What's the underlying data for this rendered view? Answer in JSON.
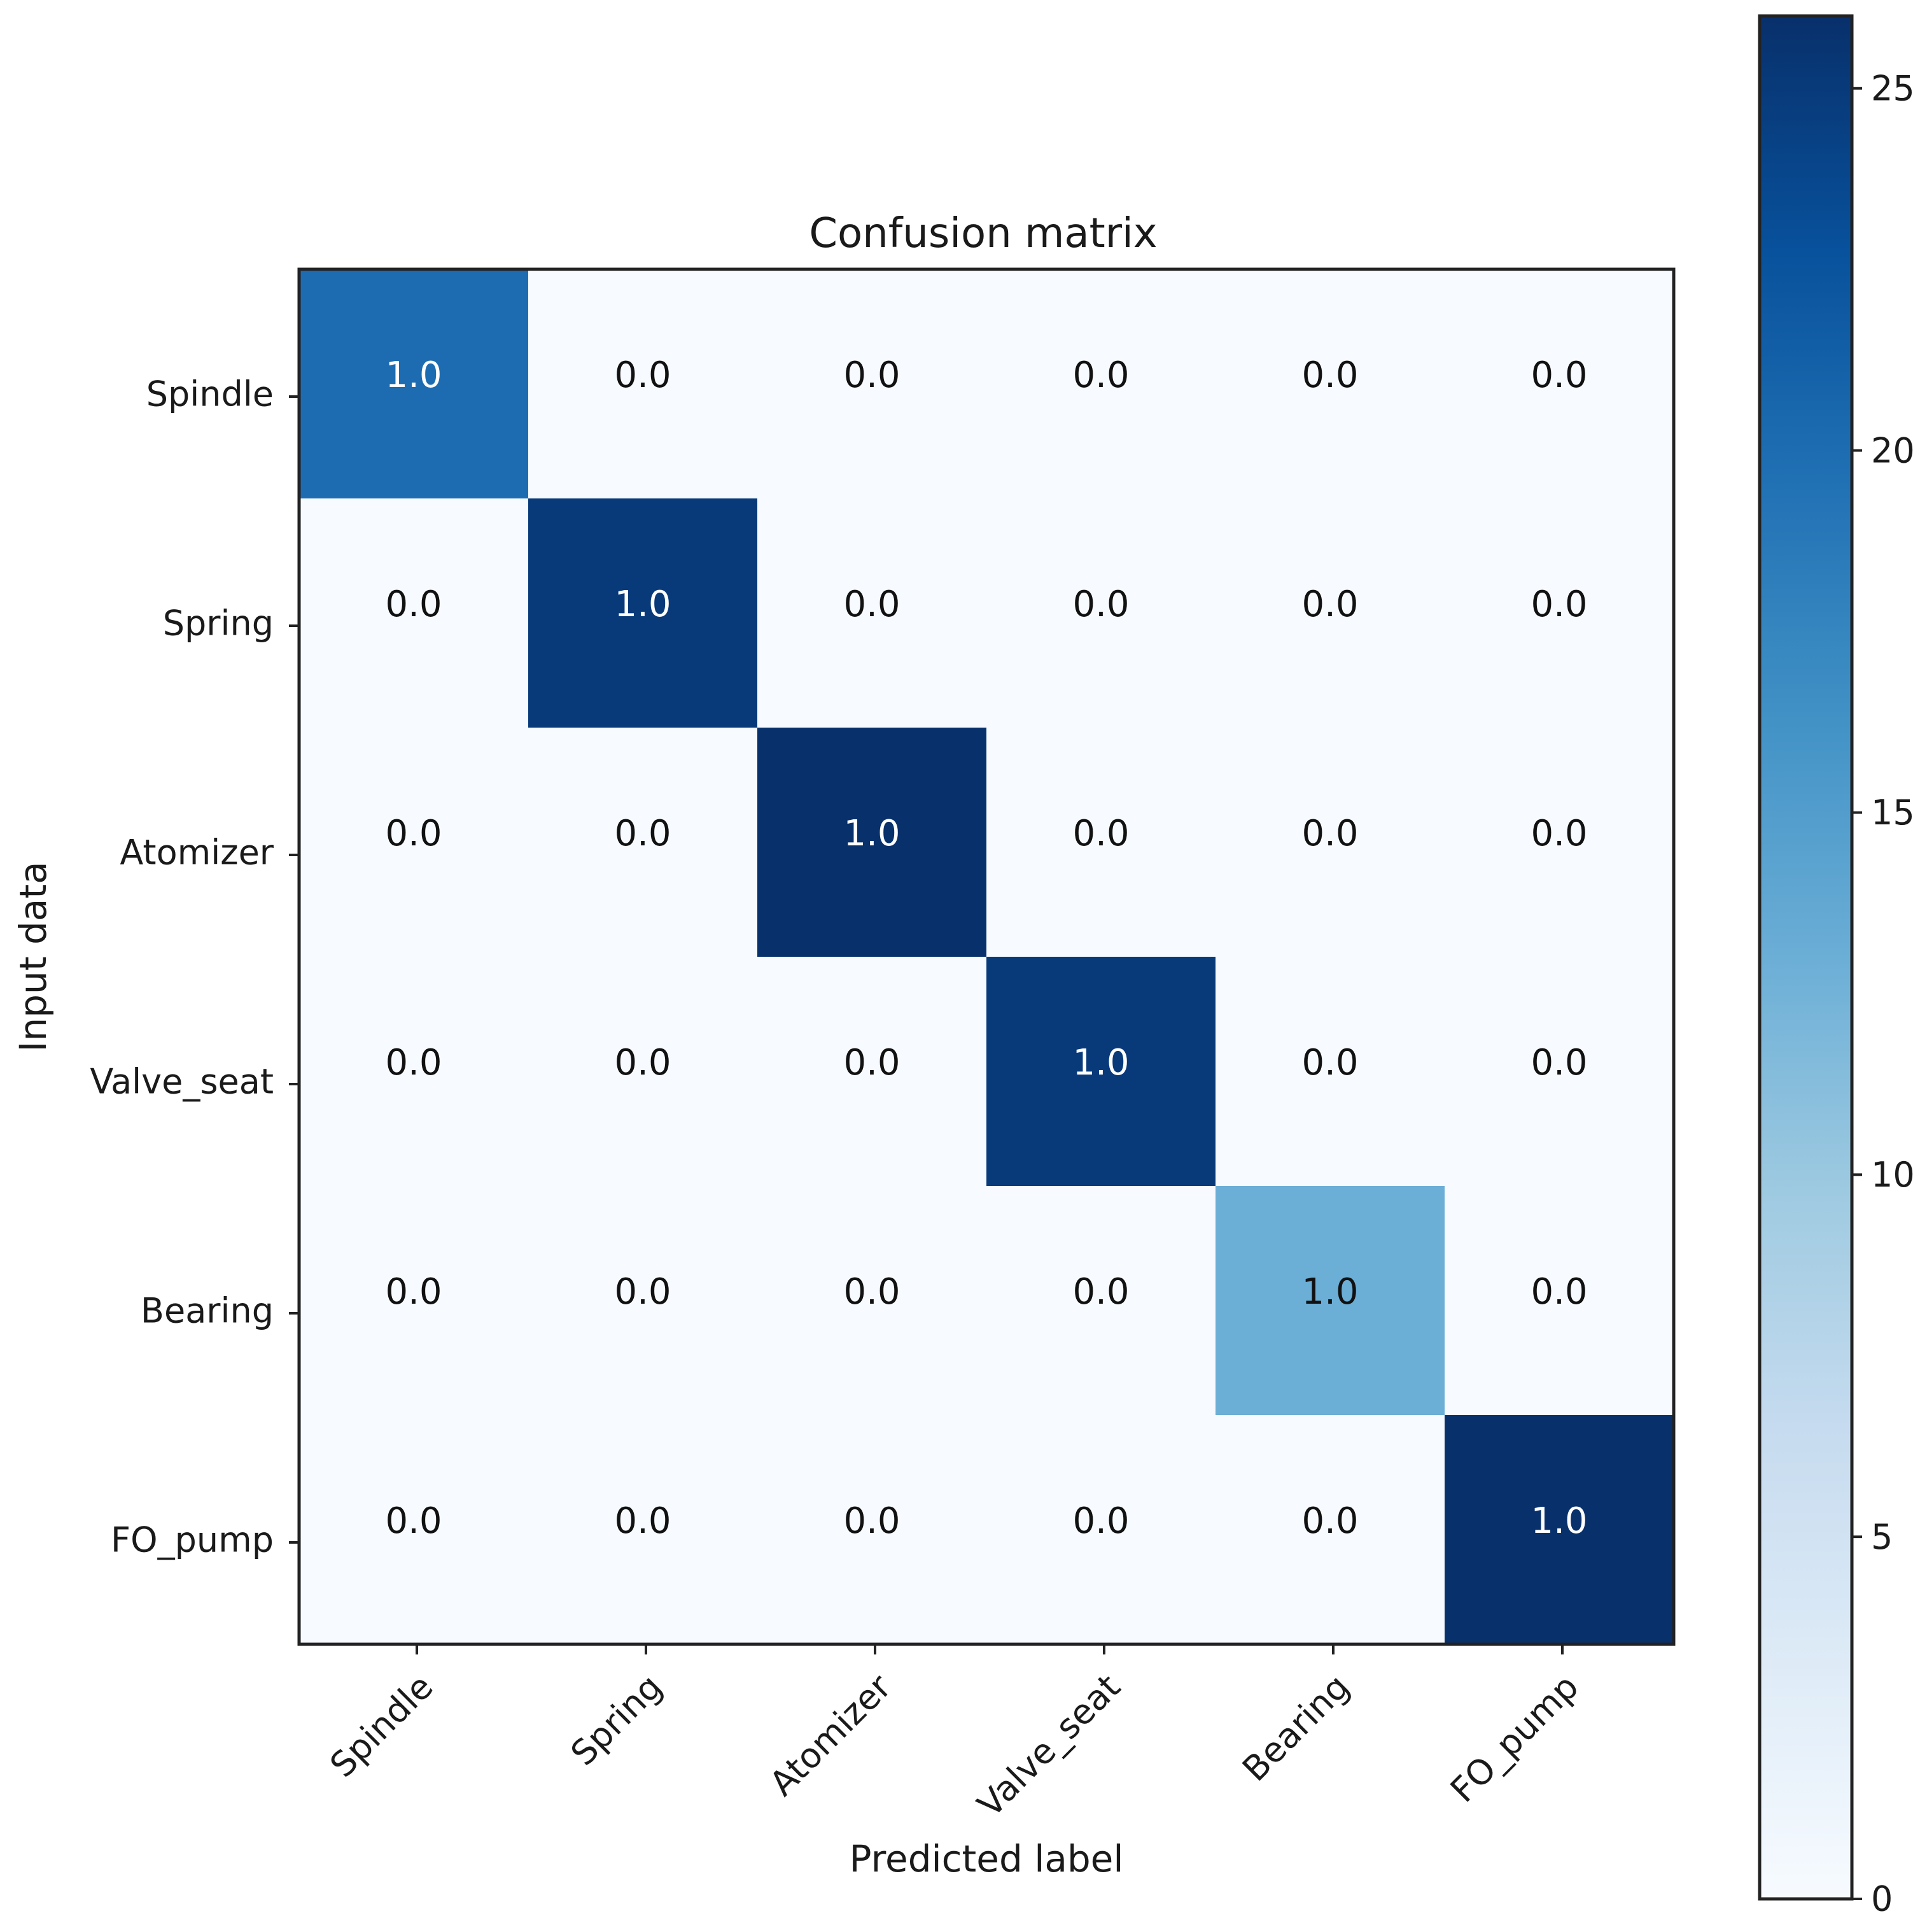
{
  "chart_data": {
    "type": "heatmap",
    "title": "Confusion matrix",
    "xlabel": "Predicted label",
    "ylabel": "Input data",
    "x_categories": [
      "Spindle",
      "Spring",
      "Atomizer",
      "Valve_seat",
      "Bearing",
      "FO_pump"
    ],
    "y_categories": [
      "Spindle",
      "Spring",
      "Atomizer",
      "Valve_seat",
      "Bearing",
      "FO_pump"
    ],
    "counts": [
      [
        20,
        0,
        0,
        0,
        0,
        0
      ],
      [
        0,
        25,
        0,
        0,
        0,
        0
      ],
      [
        0,
        0,
        26,
        0,
        0,
        0
      ],
      [
        0,
        0,
        0,
        25,
        0,
        0
      ],
      [
        0,
        0,
        0,
        0,
        13,
        0
      ],
      [
        0,
        0,
        0,
        0,
        0,
        26
      ]
    ],
    "annotations": [
      [
        "1.0",
        "0.0",
        "0.0",
        "0.0",
        "0.0",
        "0.0"
      ],
      [
        "0.0",
        "1.0",
        "0.0",
        "0.0",
        "0.0",
        "0.0"
      ],
      [
        "0.0",
        "0.0",
        "1.0",
        "0.0",
        "0.0",
        "0.0"
      ],
      [
        "0.0",
        "0.0",
        "0.0",
        "1.0",
        "0.0",
        "0.0"
      ],
      [
        "0.0",
        "0.0",
        "0.0",
        "0.0",
        "1.0",
        "0.0"
      ],
      [
        "0.0",
        "0.0",
        "0.0",
        "0.0",
        "0.0",
        "1.0"
      ]
    ],
    "colorbar": {
      "range": [
        0,
        26
      ],
      "ticks": [
        0,
        5,
        10,
        15,
        20,
        25
      ],
      "tick_labels": [
        "0",
        "5",
        "10",
        "15",
        "20",
        "25"
      ],
      "colormap": "Blues"
    },
    "grid": false
  }
}
